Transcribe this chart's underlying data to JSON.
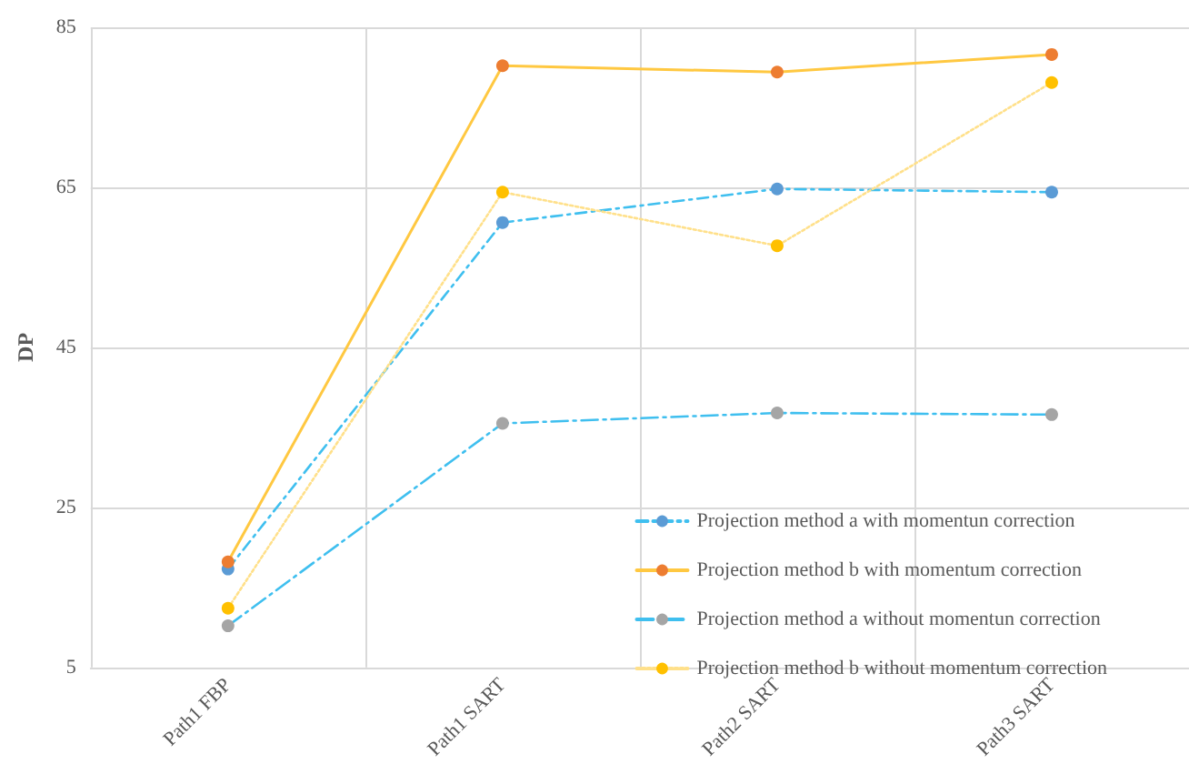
{
  "chart_data": {
    "type": "line",
    "ylabel": "DP",
    "categories": [
      "Path1 FBP",
      "Path1 SART",
      "Path2 SART",
      "Path3 SART"
    ],
    "ylim": [
      5,
      85
    ],
    "yticks": [
      5,
      25,
      45,
      65,
      85
    ],
    "grid": true,
    "legend": "bottom right",
    "marker": "circle",
    "series": [
      {
        "name": "Projection method a with momentun correction",
        "color": "#3fbfef",
        "colors": [
          "#5b9bd5",
          "#5b9bd5",
          "#5b9bd5",
          "#5b9bd5"
        ],
        "line_style": "dashed",
        "values": [
          17.3,
          60.6,
          64.8,
          64.4
        ]
      },
      {
        "name": "Projection method b with momentum correction",
        "color": "#ffc841",
        "colors": [
          "#ed7d31",
          "#ed7d31",
          "#ed7d31",
          "#ed7d31"
        ],
        "line_style": "solid",
        "values": [
          18.2,
          80.2,
          79.4,
          81.6
        ]
      },
      {
        "name": "Projection method a without momentun correction",
        "color": "#3fbfef",
        "colors": [
          "#a5a5a5",
          "#a5a5a5",
          "#a5a5a5",
          "#a5a5a5"
        ],
        "line_style": "dashed",
        "values": [
          10.2,
          35.5,
          36.8,
          36.6
        ]
      },
      {
        "name": "Projection method b without momentum correction",
        "color": "#ffe08a",
        "colors": [
          "#ffc000",
          "#ffc000",
          "#ffc000",
          "#ffc000"
        ],
        "line_style": "dotted",
        "values": [
          12.4,
          64.4,
          57.7,
          78.1
        ]
      }
    ]
  }
}
